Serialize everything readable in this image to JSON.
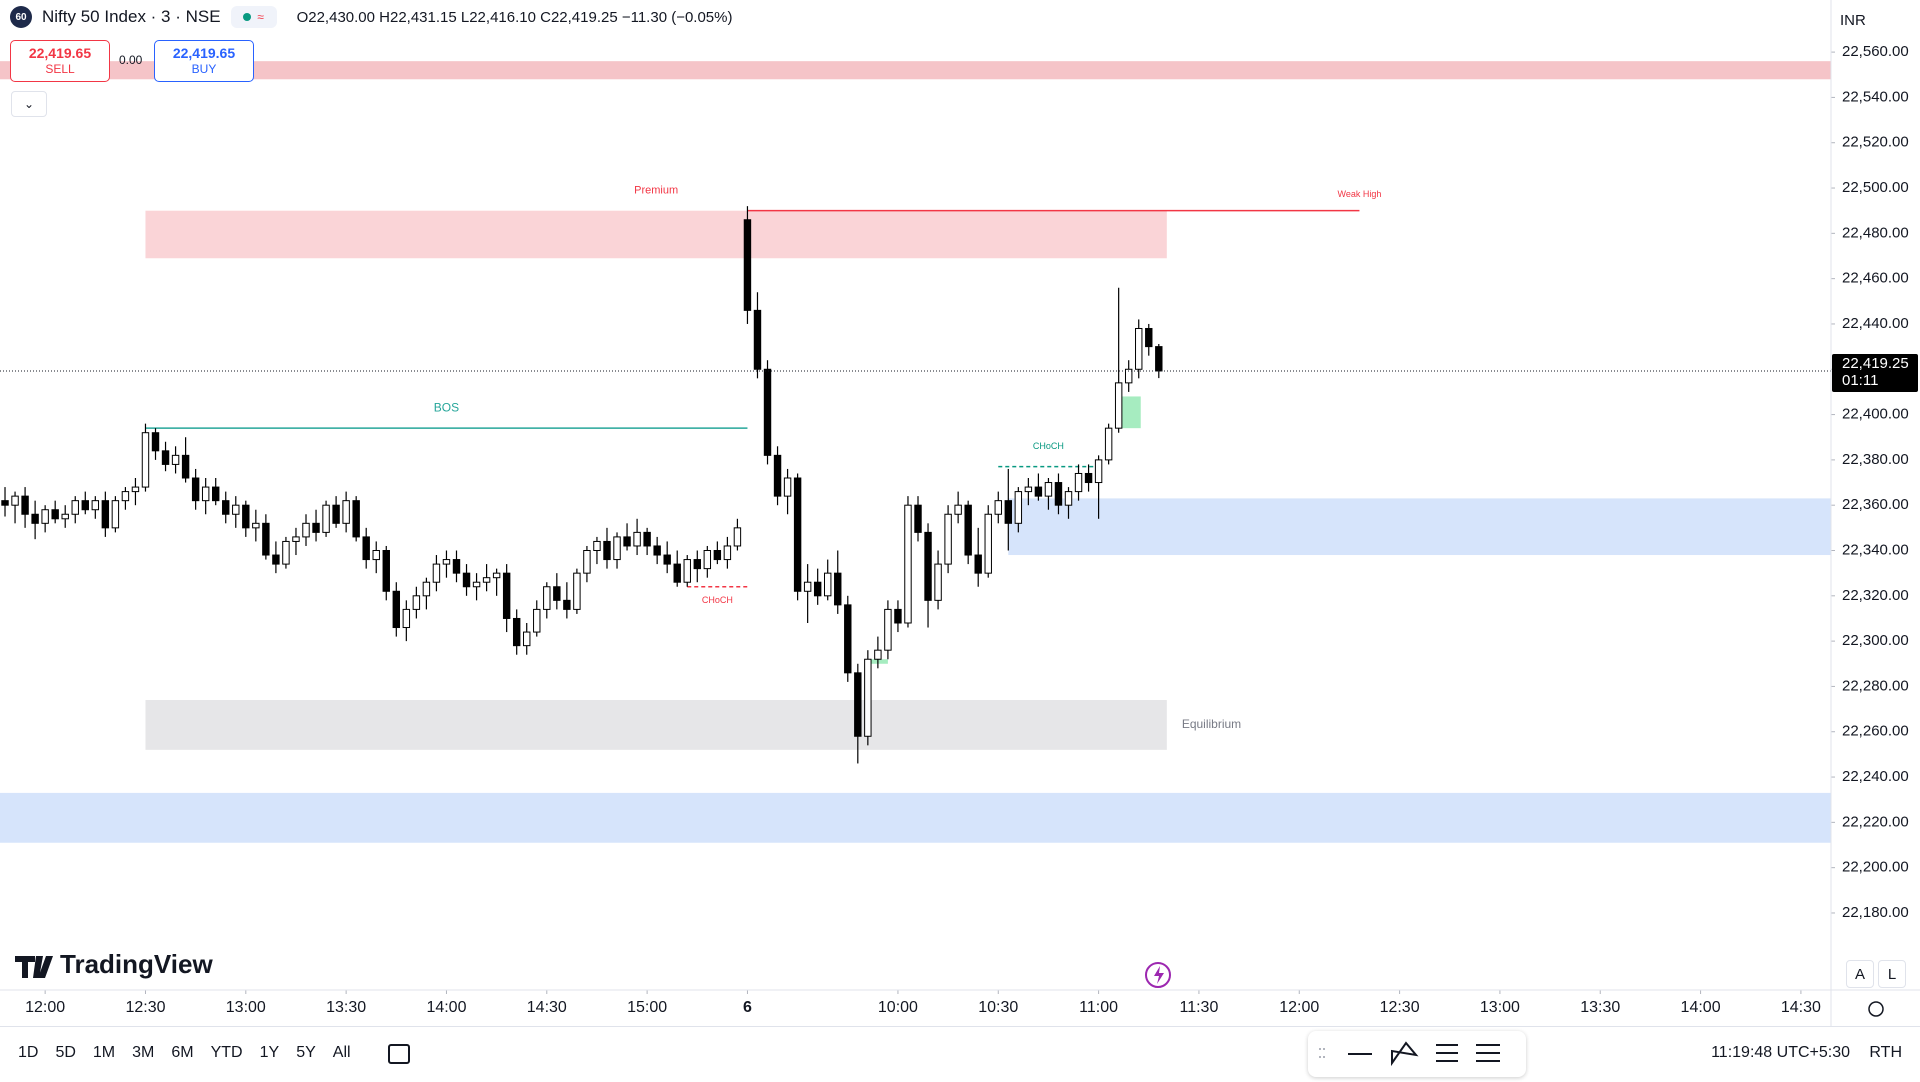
{
  "header": {
    "badge": "60",
    "symbol": "Nifty 50 Index · 3 · NSE",
    "ohlc": "O22,430.00 H22,431.15 L22,416.10 C22,419.25 −11.30 (−0.05%)"
  },
  "trade": {
    "sell_price": "22,419.65",
    "sell": "SELL",
    "spread": "0.00",
    "buy_price": "22,419.65",
    "buy": "BUY"
  },
  "currency": "INR",
  "logo": "TradingView",
  "scale_buttons": [
    "A",
    "L"
  ],
  "ranges": [
    "1D",
    "5D",
    "1M",
    "3M",
    "6M",
    "YTD",
    "1Y",
    "5Y",
    "All"
  ],
  "clock": "11:19:48 UTC+5:30",
  "session": "RTH",
  "chart_data": {
    "type": "candlestick",
    "up_color": "#ffffff",
    "down_color": "#000000",
    "grid": false,
    "xlim": [
      -0.5,
      182
    ],
    "ylim": [
      22146,
      22583
    ],
    "xticks": [
      {
        "value": 4,
        "label": "12:00"
      },
      {
        "value": 14,
        "label": "12:30"
      },
      {
        "value": 24,
        "label": "13:00"
      },
      {
        "value": 34,
        "label": "13:30"
      },
      {
        "value": 44,
        "label": "14:00"
      },
      {
        "value": 54,
        "label": "14:30"
      },
      {
        "value": 64,
        "label": "15:00"
      },
      {
        "value": 74,
        "label": "6"
      },
      {
        "value": 89,
        "label": "10:00"
      },
      {
        "value": 99,
        "label": "10:30"
      },
      {
        "value": 109,
        "label": "11:00"
      },
      {
        "value": 119,
        "label": "11:30"
      },
      {
        "value": 129,
        "label": "12:00"
      },
      {
        "value": 139,
        "label": "12:30"
      },
      {
        "value": 149,
        "label": "13:00"
      },
      {
        "value": 159,
        "label": "13:30"
      },
      {
        "value": 169,
        "label": "14:00"
      },
      {
        "value": 179,
        "label": "14:30"
      }
    ],
    "yticks": [
      {
        "value": 22180,
        "label": "22,180.00"
      },
      {
        "value": 22200,
        "label": "22,200.00"
      },
      {
        "value": 22220,
        "label": "22,220.00"
      },
      {
        "value": 22240,
        "label": "22,240.00"
      },
      {
        "value": 22260,
        "label": "22,260.00"
      },
      {
        "value": 22280,
        "label": "22,280.00"
      },
      {
        "value": 22300,
        "label": "22,300.00"
      },
      {
        "value": 22320,
        "label": "22,320.00"
      },
      {
        "value": 22340,
        "label": "22,340.00"
      },
      {
        "value": 22360,
        "label": "22,360.00"
      },
      {
        "value": 22380,
        "label": "22,380.00"
      },
      {
        "value": 22400,
        "label": "22,400.00"
      },
      {
        "value": 22420,
        "label": "22,420.00"
      },
      {
        "value": 22440,
        "label": "22,440.00"
      },
      {
        "value": 22460,
        "label": "22,460.00"
      },
      {
        "value": 22480,
        "label": "22,480.00"
      },
      {
        "value": 22500,
        "label": "22,500.00"
      },
      {
        "value": 22520,
        "label": "22,520.00"
      },
      {
        "value": 22540,
        "label": "22,540.00"
      },
      {
        "value": 22560,
        "label": "22,560.00"
      }
    ],
    "candles": [
      [
        22362,
        22368,
        22355,
        22360
      ],
      [
        22360,
        22366,
        22352,
        22364
      ],
      [
        22364,
        22368,
        22350,
        22356
      ],
      [
        22356,
        22362,
        22345,
        22352
      ],
      [
        22352,
        22360,
        22348,
        22358
      ],
      [
        22358,
        22362,
        22352,
        22354
      ],
      [
        22354,
        22360,
        22350,
        22356
      ],
      [
        22356,
        22364,
        22352,
        22362
      ],
      [
        22362,
        22366,
        22356,
        22358
      ],
      [
        22358,
        22364,
        22354,
        22362
      ],
      [
        22362,
        22366,
        22346,
        22350
      ],
      [
        22350,
        22364,
        22348,
        22362
      ],
      [
        22362,
        22368,
        22358,
        22366
      ],
      [
        22366,
        22372,
        22360,
        22368
      ],
      [
        22368,
        22396,
        22366,
        22392
      ],
      [
        22392,
        22394,
        22380,
        22384
      ],
      [
        22384,
        22388,
        22375,
        22378
      ],
      [
        22378,
        22386,
        22374,
        22382
      ],
      [
        22382,
        22390,
        22370,
        22372
      ],
      [
        22372,
        22376,
        22358,
        22362
      ],
      [
        22362,
        22372,
        22356,
        22368
      ],
      [
        22368,
        22372,
        22360,
        22362
      ],
      [
        22362,
        22366,
        22352,
        22356
      ],
      [
        22356,
        22364,
        22350,
        22360
      ],
      [
        22360,
        22362,
        22346,
        22350
      ],
      [
        22350,
        22358,
        22344,
        22352
      ],
      [
        22352,
        22356,
        22336,
        22338
      ],
      [
        22338,
        22344,
        22330,
        22334
      ],
      [
        22334,
        22346,
        22332,
        22344
      ],
      [
        22344,
        22350,
        22338,
        22346
      ],
      [
        22346,
        22356,
        22342,
        22352
      ],
      [
        22352,
        22358,
        22344,
        22348
      ],
      [
        22348,
        22362,
        22346,
        22360
      ],
      [
        22360,
        22364,
        22350,
        22352
      ],
      [
        22352,
        22366,
        22348,
        22362
      ],
      [
        22362,
        22364,
        22344,
        22346
      ],
      [
        22346,
        22350,
        22332,
        22336
      ],
      [
        22336,
        22344,
        22330,
        22340
      ],
      [
        22340,
        22342,
        22318,
        22322
      ],
      [
        22322,
        22326,
        22302,
        22306
      ],
      [
        22306,
        22318,
        22300,
        22314
      ],
      [
        22314,
        22324,
        22310,
        22320
      ],
      [
        22320,
        22328,
        22314,
        22326
      ],
      [
        22326,
        22338,
        22322,
        22334
      ],
      [
        22334,
        22340,
        22328,
        22336
      ],
      [
        22336,
        22340,
        22326,
        22330
      ],
      [
        22330,
        22334,
        22320,
        22324
      ],
      [
        22324,
        22330,
        22318,
        22326
      ],
      [
        22326,
        22334,
        22322,
        22328
      ],
      [
        22328,
        22332,
        22320,
        22330
      ],
      [
        22330,
        22334,
        22304,
        22310
      ],
      [
        22310,
        22314,
        22294,
        22298
      ],
      [
        22298,
        22308,
        22294,
        22304
      ],
      [
        22304,
        22318,
        22302,
        22314
      ],
      [
        22314,
        22326,
        22310,
        22324
      ],
      [
        22324,
        22330,
        22314,
        22318
      ],
      [
        22318,
        22326,
        22310,
        22314
      ],
      [
        22314,
        22332,
        22312,
        22330
      ],
      [
        22330,
        22342,
        22326,
        22340
      ],
      [
        22340,
        22346,
        22334,
        22344
      ],
      [
        22344,
        22350,
        22332,
        22336
      ],
      [
        22336,
        22348,
        22332,
        22346
      ],
      [
        22346,
        22352,
        22340,
        22342
      ],
      [
        22342,
        22354,
        22338,
        22348
      ],
      [
        22348,
        22350,
        22338,
        22342
      ],
      [
        22342,
        22346,
        22334,
        22338
      ],
      [
        22338,
        22344,
        22330,
        22334
      ],
      [
        22334,
        22340,
        22324,
        22326
      ],
      [
        22326,
        22338,
        22324,
        22336
      ],
      [
        22336,
        22340,
        22326,
        22332
      ],
      [
        22332,
        22342,
        22328,
        22340
      ],
      [
        22340,
        22344,
        22334,
        22336
      ],
      [
        22336,
        22346,
        22332,
        22342
      ],
      [
        22342,
        22354,
        22340,
        22350
      ],
      [
        22486,
        22492,
        22440,
        22446
      ],
      [
        22446,
        22454,
        22416,
        22420
      ],
      [
        22420,
        22424,
        22378,
        22382
      ],
      [
        22382,
        22386,
        22360,
        22364
      ],
      [
        22364,
        22376,
        22356,
        22372
      ],
      [
        22372,
        22374,
        22318,
        22322
      ],
      [
        22322,
        22334,
        22308,
        22326
      ],
      [
        22326,
        22332,
        22316,
        22320
      ],
      [
        22320,
        22336,
        22318,
        22330
      ],
      [
        22330,
        22340,
        22312,
        22316
      ],
      [
        22316,
        22320,
        22282,
        22286
      ],
      [
        22286,
        22290,
        22246,
        22258
      ],
      [
        22258,
        22296,
        22254,
        22292
      ],
      [
        22292,
        22302,
        22288,
        22296
      ],
      [
        22296,
        22318,
        22292,
        22314
      ],
      [
        22314,
        22318,
        22304,
        22308
      ],
      [
        22308,
        22364,
        22306,
        22360
      ],
      [
        22360,
        22364,
        22344,
        22348
      ],
      [
        22348,
        22352,
        22306,
        22318
      ],
      [
        22318,
        22340,
        22314,
        22334
      ],
      [
        22334,
        22360,
        22330,
        22356
      ],
      [
        22356,
        22366,
        22352,
        22360
      ],
      [
        22360,
        22362,
        22334,
        22338
      ],
      [
        22338,
        22350,
        22324,
        22330
      ],
      [
        22330,
        22360,
        22328,
        22356
      ],
      [
        22356,
        22366,
        22352,
        22362
      ],
      [
        22362,
        22376,
        22340,
        22352
      ],
      [
        22352,
        22368,
        22348,
        22366
      ],
      [
        22366,
        22372,
        22360,
        22368
      ],
      [
        22368,
        22374,
        22362,
        22364
      ],
      [
        22364,
        22372,
        22358,
        22370
      ],
      [
        22370,
        22374,
        22356,
        22360
      ],
      [
        22360,
        22368,
        22354,
        22366
      ],
      [
        22366,
        22378,
        22362,
        22374
      ],
      [
        22374,
        22378,
        22366,
        22370
      ],
      [
        22370,
        22382,
        22354,
        22380
      ],
      [
        22380,
        22396,
        22378,
        22394
      ],
      [
        22394,
        22456,
        22392,
        22414
      ],
      [
        22414,
        22424,
        22410,
        22420
      ],
      [
        22420,
        22442,
        22416,
        22438
      ],
      [
        22438,
        22440,
        22426,
        22430
      ],
      [
        22430.0,
        22431.15,
        22416.1,
        22419.25
      ]
    ],
    "zones": [
      {
        "low": 22548,
        "high": 22556,
        "x0": 0,
        "extend": "both",
        "color": "#f5c4c8"
      },
      {
        "label": "Premium",
        "low": 22469,
        "high": 22490,
        "x0": 14,
        "x1": 115.8,
        "color": "#fad4d7",
        "label_color": "#f23645",
        "label_pos": "top"
      },
      {
        "label": "Equilibrium",
        "low": 22252,
        "high": 22274,
        "x0": 14,
        "x1": 115.8,
        "color": "#e6e6e8",
        "label_color": "#787b86",
        "label_pos": "right"
      },
      {
        "low": 22338,
        "high": 22363,
        "x0": 100,
        "extend": "right",
        "color": "#d6e4fb"
      },
      {
        "low": 22211,
        "high": 22233,
        "x0": 0,
        "extend": "both",
        "color": "#d6e4fb"
      },
      {
        "low": 22394,
        "high": 22408,
        "x0": 111.2,
        "x1": 113.2,
        "color": "#a6ecc0"
      },
      {
        "low": 22290,
        "high": 22292,
        "x0": 86,
        "x1": 88,
        "color": "#a6ecc0"
      }
    ],
    "lines": [
      {
        "label": "BOS",
        "y": 22394,
        "x0": 14,
        "x1": 74,
        "color": "#26a69a",
        "dashed": false,
        "label_pos": "above"
      },
      {
        "label": "Weak High",
        "y": 22490,
        "x0": 74,
        "x1": 135,
        "color": "#f23645",
        "dashed": false,
        "label_pos": "end"
      },
      {
        "label": "CHoCH",
        "y": 22324,
        "x0": 68,
        "x1": 74,
        "color": "#f23645",
        "dashed": true,
        "label_pos": "below"
      },
      {
        "label": "CHoCH",
        "y": 22377,
        "x0": 99,
        "x1": 109,
        "color": "#089981",
        "dashed": true,
        "label_pos": "above"
      }
    ],
    "last": {
      "value": 22419.25,
      "label": "22,419.25",
      "countdown": "01:11"
    }
  }
}
